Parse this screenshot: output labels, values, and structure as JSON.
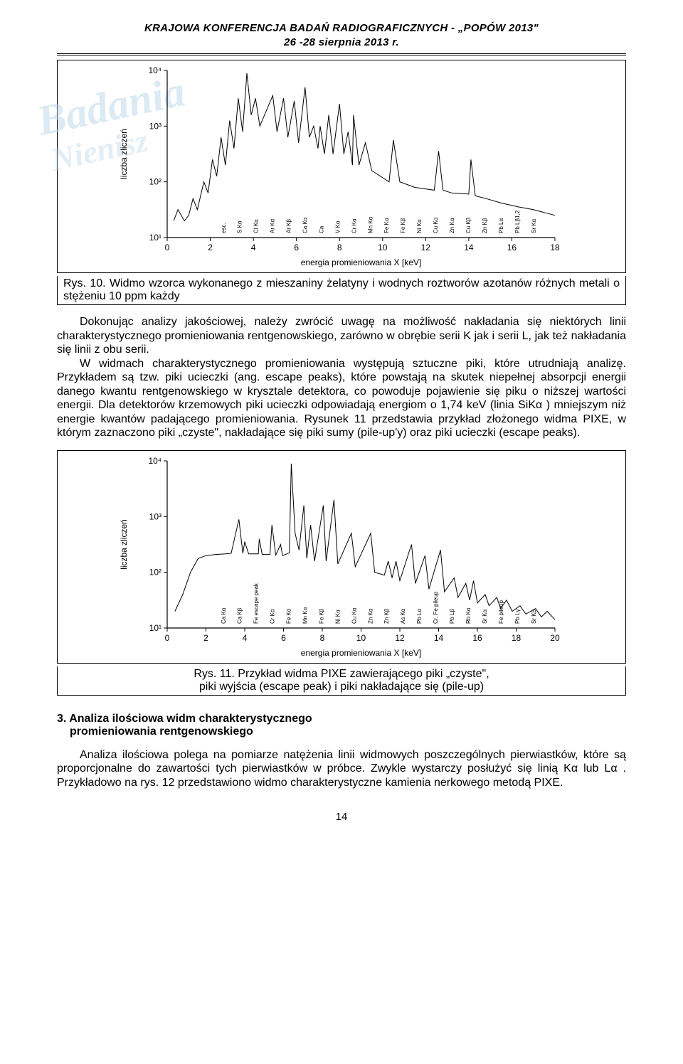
{
  "header": {
    "line1": "KRAJOWA KONFERENCJA BADAŃ RADIOGRAFICZNYCH  -  „POPÓW 2013\"",
    "line2": "26 -28 sierpnia 2013 r."
  },
  "fig10": {
    "type": "line",
    "caption": "Rys. 10. Widmo wzorca wykonanego z mieszaniny żelatyny i wodnych roztworów azotanów różnych metali o stężeniu 10 ppm każdy",
    "x_axis_title": "energia promieniowania X [keV]",
    "y_axis_title": "liczba zliczeń",
    "xlim": [
      0,
      18
    ],
    "xtick_step": 2,
    "ylim_log": [
      1,
      4
    ],
    "yticks": [
      "10¹",
      "10²",
      "10³",
      "10⁴"
    ],
    "background_color": "#ffffff",
    "line_color": "#000000",
    "line_width": 1,
    "peak_labels": [
      "esc.",
      "S Kα",
      "Cl Kα",
      "Ar Kα",
      "Ar Kβ",
      "Ca Kα",
      "Ca",
      "V Kα",
      "Cr Kα",
      "Mn Kα",
      "Fe Kα",
      "Fe Kβ",
      "Ni Kα",
      "Cu Kα",
      "Zn Kα",
      "Cu Kβ",
      "Zn Kβ",
      "Pb Lα",
      "Pb Lβ1,2",
      "Sr Kα"
    ],
    "data_points": [
      [
        0.3,
        1.3
      ],
      [
        0.5,
        1.5
      ],
      [
        0.8,
        1.3
      ],
      [
        1.0,
        1.4
      ],
      [
        1.2,
        1.7
      ],
      [
        1.4,
        1.5
      ],
      [
        1.7,
        2.0
      ],
      [
        1.9,
        1.8
      ],
      [
        2.1,
        2.4
      ],
      [
        2.3,
        2.1
      ],
      [
        2.5,
        2.8
      ],
      [
        2.7,
        2.3
      ],
      [
        2.9,
        3.1
      ],
      [
        3.1,
        2.6
      ],
      [
        3.3,
        3.5
      ],
      [
        3.5,
        2.9
      ],
      [
        3.7,
        3.95
      ],
      [
        3.9,
        3.2
      ],
      [
        4.1,
        3.5
      ],
      [
        4.3,
        3.0
      ],
      [
        4.9,
        3.55
      ],
      [
        5.1,
        2.9
      ],
      [
        5.4,
        3.5
      ],
      [
        5.6,
        2.8
      ],
      [
        5.9,
        3.45
      ],
      [
        6.1,
        2.7
      ],
      [
        6.4,
        3.7
      ],
      [
        6.6,
        2.8
      ],
      [
        6.8,
        3.0
      ],
      [
        7.0,
        2.6
      ],
      [
        7.1,
        3.0
      ],
      [
        7.3,
        2.5
      ],
      [
        7.5,
        3.2
      ],
      [
        7.7,
        2.5
      ],
      [
        8.0,
        3.4
      ],
      [
        8.2,
        2.5
      ],
      [
        8.4,
        2.9
      ],
      [
        8.6,
        2.3
      ],
      [
        8.65,
        3.2
      ],
      [
        8.9,
        2.3
      ],
      [
        9.2,
        2.7
      ],
      [
        9.5,
        2.2
      ],
      [
        10.3,
        2.0
      ],
      [
        10.5,
        2.75
      ],
      [
        10.8,
        2.0
      ],
      [
        11.5,
        1.9
      ],
      [
        12.4,
        1.85
      ],
      [
        12.6,
        2.55
      ],
      [
        12.8,
        1.85
      ],
      [
        13.2,
        1.8
      ],
      [
        14.0,
        1.78
      ],
      [
        14.1,
        2.4
      ],
      [
        14.3,
        1.75
      ],
      [
        14.8,
        1.7
      ],
      [
        15.5,
        1.62
      ],
      [
        16.3,
        1.55
      ],
      [
        17.0,
        1.5
      ],
      [
        17.5,
        1.45
      ],
      [
        18.0,
        1.4
      ]
    ]
  },
  "para1": "Dokonując analizy jakościowej, należy zwrócić uwagę na możliwość nakładania się niektórych linii charakterystycznego promieniowania rentgenowskiego, zarówno w obrębie serii K jak i serii L, jak też nakładania się linii z obu serii.",
  "para2": "W widmach charakterystycznego promieniowania występują sztuczne piki, które utrudniają analizę. Przykładem są tzw. piki ucieczki (ang. escape peaks), które powstają na skutek niepełnej absorpcji energii danego kwantu rentgenowskiego w krysztale detektora, co powoduje pojawienie się piku o niższej wartości energii. Dla detektorów krzemowych piki ucieczki odpowiadają energiom o 1,74 keV (linia SiKα ) mniejszym niż energie kwantów padającego promieniowania. Rysunek 11 przedstawia przykład złożonego widma PIXE, w którym zaznaczono piki „czyste\", nakładające się piki sumy (pile-up'y) oraz piki ucieczki (escape peaks).",
  "fig11": {
    "type": "line",
    "caption_line1": "Rys. 11. Przykład widma PIXE zawierającego piki „czyste\",",
    "caption_line2": "piki wyjścia (escape peak) i piki nakładające się (pile-up)",
    "x_axis_title": "energia promieniowania X [keV]",
    "y_axis_title": "liczba zliczeń",
    "xlim": [
      0,
      20
    ],
    "xtick_step": 2,
    "ylim_log": [
      1,
      4
    ],
    "yticks": [
      "10¹",
      "10²",
      "10³",
      "10⁴"
    ],
    "background_color": "#ffffff",
    "line_color": "#000000",
    "line_width": 1,
    "peak_labels": [
      "Ca Kα",
      "Ca Kβ",
      "Fe escape peak",
      "Cr Kα",
      "Fe Kα",
      "Mn Kα",
      "Fe Kβ",
      "Ni Kα",
      "Cu Kα",
      "Zn Kα",
      "Zn Kβ",
      "As Kα",
      "Pb Lα",
      "Cr, Fe pileup",
      "Pb Lβ",
      "Rb Kα",
      "Sr Kα",
      "Fe pileup",
      "Pb Lγ",
      "Sr Kβ"
    ],
    "data_points": [
      [
        0.4,
        1.3
      ],
      [
        0.8,
        1.6
      ],
      [
        1.2,
        2.0
      ],
      [
        1.6,
        2.25
      ],
      [
        2.0,
        2.3
      ],
      [
        2.5,
        2.32
      ],
      [
        3.0,
        2.33
      ],
      [
        3.3,
        2.34
      ],
      [
        3.7,
        2.95
      ],
      [
        3.9,
        2.34
      ],
      [
        4.0,
        2.55
      ],
      [
        4.2,
        2.33
      ],
      [
        4.7,
        2.33
      ],
      [
        4.75,
        2.6
      ],
      [
        4.9,
        2.32
      ],
      [
        5.3,
        2.32
      ],
      [
        5.4,
        2.85
      ],
      [
        5.6,
        2.31
      ],
      [
        5.85,
        2.5
      ],
      [
        5.95,
        2.3
      ],
      [
        6.3,
        2.35
      ],
      [
        6.4,
        3.95
      ],
      [
        6.6,
        2.7
      ],
      [
        6.8,
        2.4
      ],
      [
        7.05,
        3.2
      ],
      [
        7.2,
        2.25
      ],
      [
        7.4,
        2.85
      ],
      [
        7.6,
        2.2
      ],
      [
        8.05,
        3.2
      ],
      [
        8.2,
        2.2
      ],
      [
        8.6,
        3.3
      ],
      [
        8.8,
        2.15
      ],
      [
        9.5,
        2.7
      ],
      [
        9.7,
        2.1
      ],
      [
        10.5,
        2.7
      ],
      [
        10.7,
        2.0
      ],
      [
        11.2,
        1.95
      ],
      [
        11.4,
        2.2
      ],
      [
        11.6,
        1.9
      ],
      [
        11.8,
        2.2
      ],
      [
        12.0,
        1.85
      ],
      [
        12.6,
        2.5
      ],
      [
        12.8,
        1.8
      ],
      [
        13.3,
        2.3
      ],
      [
        13.5,
        1.7
      ],
      [
        14.1,
        2.4
      ],
      [
        14.3,
        1.65
      ],
      [
        14.8,
        1.9
      ],
      [
        15.0,
        1.55
      ],
      [
        15.4,
        1.8
      ],
      [
        15.6,
        1.5
      ],
      [
        15.8,
        1.85
      ],
      [
        16.0,
        1.45
      ],
      [
        16.4,
        1.6
      ],
      [
        16.6,
        1.4
      ],
      [
        17.0,
        1.55
      ],
      [
        17.2,
        1.35
      ],
      [
        17.5,
        1.5
      ],
      [
        17.8,
        1.3
      ],
      [
        18.2,
        1.4
      ],
      [
        18.5,
        1.25
      ],
      [
        19.0,
        1.35
      ],
      [
        19.3,
        1.2
      ],
      [
        19.6,
        1.3
      ],
      [
        20.0,
        1.15
      ]
    ]
  },
  "section3": {
    "title_line1": "3. Analiza ilościowa widm charakterystycznego",
    "title_line2": "promieniowania rentgenowskiego"
  },
  "para3": "Analiza ilościowa polega na pomiarze natężenia linii widmowych poszczególnych pierwiastków, które są proporcjonalne do zawartości tych pierwiastków w próbce. Zwykle wystarczy posłużyć się linią Kα  lub Lα . Przykładowo na rys. 12 przedstawiono widmo charakterystyczne kamienia nerkowego metodą PIXE.",
  "page_number": "14"
}
